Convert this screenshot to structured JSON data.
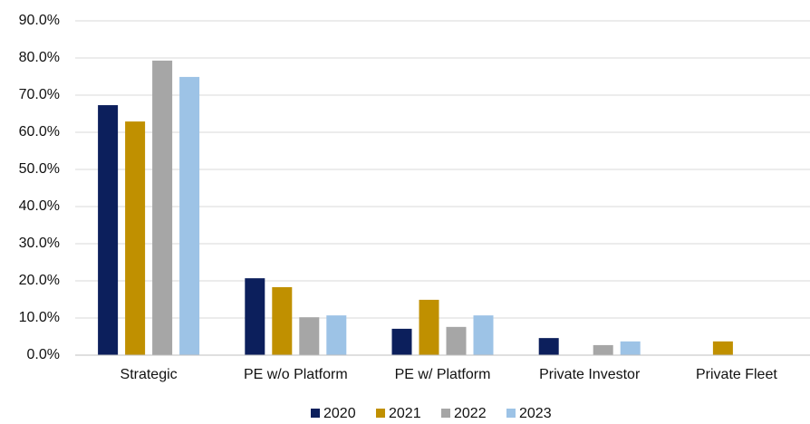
{
  "chart_data": {
    "type": "bar",
    "categories": [
      "Strategic",
      "PE w/o Platform",
      "PE w/ Platform",
      "Private Investor",
      "Private Fleet"
    ],
    "series": [
      {
        "name": "2020",
        "color": "#0c1f5c",
        "values": [
          67.3,
          20.7,
          7.1,
          4.6,
          0
        ]
      },
      {
        "name": "2021",
        "color": "#c09000",
        "values": [
          62.9,
          18.3,
          14.9,
          0,
          3.7
        ]
      },
      {
        "name": "2022",
        "color": "#a6a6a6",
        "values": [
          79.3,
          10.2,
          7.6,
          2.7,
          0
        ]
      },
      {
        "name": "2023",
        "color": "#9dc3e6",
        "values": [
          74.9,
          10.7,
          10.7,
          3.7,
          0
        ]
      }
    ],
    "ylim": [
      0,
      90
    ],
    "yticks": [
      {
        "value": 0,
        "label": "0.0%"
      },
      {
        "value": 10,
        "label": "10.0%"
      },
      {
        "value": 20,
        "label": "20.0%"
      },
      {
        "value": 30,
        "label": "30.0%"
      },
      {
        "value": 40,
        "label": "40.0%"
      },
      {
        "value": 50,
        "label": "50.0%"
      },
      {
        "value": 60,
        "label": "60.0%"
      },
      {
        "value": 70,
        "label": "70.0%"
      },
      {
        "value": 80,
        "label": "80.0%"
      },
      {
        "value": 90,
        "label": "90.0%"
      }
    ],
    "grid": true,
    "legend": "bottom"
  }
}
